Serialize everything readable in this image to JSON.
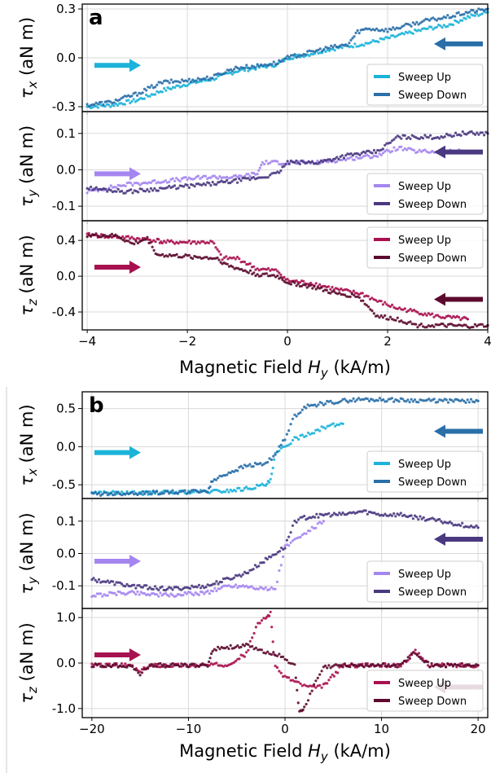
{
  "figure": {
    "panels": [
      {
        "letter": "a",
        "xlabel": "Magnetic Field H_y (kA/m)"
      },
      {
        "letter": "b",
        "xlabel": "Magnetic Field H_y (kA/m)"
      }
    ]
  },
  "chart_data": [
    {
      "type": "scatter",
      "panel": "a",
      "subplot": "tau_x",
      "ylabel": "τx (aN m)",
      "xlim": [
        -4.1,
        4.0
      ],
      "ylim": [
        -0.33,
        0.33
      ],
      "xticks": [
        -4,
        -2,
        0,
        2,
        4
      ],
      "xticklabels": [
        "−4",
        "−2",
        "0",
        "2",
        "4"
      ],
      "yticks": [
        -0.3,
        0.0,
        0.3
      ],
      "yticklabels": [
        "-0.3",
        "0.0",
        "0.3"
      ],
      "grid": true,
      "legend_position": "lower-right",
      "arrows": [
        {
          "direction": "right",
          "color": "#1bb3d9",
          "pos": "left"
        },
        {
          "direction": "left",
          "color": "#2a6fa8",
          "pos": "right"
        }
      ],
      "series": [
        {
          "name": "Sweep Up",
          "color": "#1bb3d9",
          "x": [
            -4.0,
            -3.5,
            -3.0,
            -2.5,
            -2.0,
            -1.5,
            -1.2,
            -1.0,
            -0.6,
            -0.2,
            0.0,
            0.4,
            0.8,
            1.2,
            1.6,
            2.0,
            2.4,
            2.8,
            3.2,
            3.6,
            4.0
          ],
          "y": [
            -0.3,
            -0.29,
            -0.26,
            -0.2,
            -0.16,
            -0.13,
            -0.1,
            -0.08,
            -0.06,
            -0.04,
            0.0,
            0.02,
            0.05,
            0.07,
            0.09,
            0.12,
            0.15,
            0.18,
            0.2,
            0.25,
            0.28
          ]
        },
        {
          "name": "Sweep Down",
          "color": "#2a6fa8",
          "x": [
            -4.0,
            -3.5,
            -3.0,
            -2.5,
            -2.0,
            -1.5,
            -1.2,
            -1.0,
            -0.6,
            -0.2,
            0.0,
            0.4,
            0.8,
            1.2,
            1.4,
            1.6,
            2.0,
            2.4,
            2.8,
            3.2,
            3.6,
            4.0
          ],
          "y": [
            -0.29,
            -0.27,
            -0.22,
            -0.15,
            -0.14,
            -0.12,
            -0.08,
            -0.06,
            -0.05,
            -0.03,
            0.0,
            0.03,
            0.06,
            0.08,
            0.16,
            0.18,
            0.17,
            0.2,
            0.23,
            0.25,
            0.28,
            0.3
          ]
        }
      ]
    },
    {
      "type": "scatter",
      "panel": "a",
      "subplot": "tau_y",
      "ylabel": "τy (aN m)",
      "xlim": [
        -4.1,
        4.0
      ],
      "ylim": [
        -0.14,
        0.16
      ],
      "xticks": [
        -4,
        -2,
        0,
        2,
        4
      ],
      "xticklabels": [
        "−4",
        "−2",
        "0",
        "2",
        "4"
      ],
      "yticks": [
        -0.1,
        0.0,
        0.1
      ],
      "yticklabels": [
        "-0.1",
        "0.0",
        "0.1"
      ],
      "grid": true,
      "legend_position": "lower-right",
      "arrows": [
        {
          "direction": "right",
          "color": "#a586f0",
          "pos": "left"
        },
        {
          "direction": "left",
          "color": "#4a3880",
          "pos": "right"
        }
      ],
      "series": [
        {
          "name": "Sweep Up",
          "color": "#a586f0",
          "x": [
            -4.0,
            -3.2,
            -2.4,
            -1.6,
            -1.0,
            -0.6,
            -0.5,
            -0.2,
            0.0,
            0.6,
            1.2,
            1.8,
            2.2,
            2.6,
            3.0,
            3.5
          ],
          "y": [
            -0.06,
            -0.04,
            -0.03,
            -0.02,
            -0.02,
            -0.01,
            0.02,
            0.02,
            0.02,
            0.02,
            0.03,
            0.04,
            0.06,
            0.05,
            0.05,
            0.05
          ]
        },
        {
          "name": "Sweep Down",
          "color": "#4a3880",
          "x": [
            -4.0,
            -3.2,
            -2.4,
            -1.6,
            -1.0,
            -0.5,
            -0.2,
            0.0,
            0.6,
            1.2,
            1.8,
            2.2,
            2.6,
            3.0,
            3.5,
            4.0
          ],
          "y": [
            -0.05,
            -0.06,
            -0.05,
            -0.04,
            -0.03,
            -0.02,
            -0.01,
            0.02,
            0.02,
            0.04,
            0.05,
            0.09,
            0.09,
            0.09,
            0.1,
            0.1
          ]
        }
      ]
    },
    {
      "type": "scatter",
      "panel": "a",
      "subplot": "tau_z",
      "ylabel": "τz (aN m)",
      "xlim": [
        -4.1,
        4.0
      ],
      "ylim": [
        -0.6,
        0.62
      ],
      "xticks": [
        -4,
        -2,
        0,
        2,
        4
      ],
      "xticklabels": [
        "−4",
        "−2",
        "0",
        "2",
        "4"
      ],
      "yticks": [
        -0.4,
        0.0,
        0.4
      ],
      "yticklabels": [
        "-0.4",
        "0.0",
        "0.4"
      ],
      "grid": true,
      "legend_position": "upper-right",
      "arrows": [
        {
          "direction": "right",
          "color": "#a8114f",
          "pos": "left"
        },
        {
          "direction": "left",
          "color": "#5c0a2e",
          "pos": "right"
        }
      ],
      "series": [
        {
          "name": "Sweep Up",
          "color": "#a8114f",
          "x": [
            -4.0,
            -3.4,
            -3.0,
            -2.6,
            -2.5,
            -2.0,
            -1.5,
            -1.3,
            -1.0,
            -0.6,
            -0.2,
            0.0,
            0.5,
            1.0,
            1.5,
            1.8,
            2.2,
            2.6,
            3.0,
            3.6
          ],
          "y": [
            0.46,
            0.44,
            0.42,
            0.4,
            0.38,
            0.38,
            0.38,
            0.2,
            0.2,
            0.08,
            0.06,
            -0.05,
            -0.08,
            -0.15,
            -0.2,
            -0.28,
            -0.36,
            -0.4,
            -0.45,
            -0.48
          ]
        },
        {
          "name": "Sweep Down",
          "color": "#5c0a2e",
          "x": [
            -4.0,
            -3.4,
            -3.1,
            -2.8,
            -2.6,
            -2.0,
            -1.4,
            -1.2,
            -0.6,
            -0.2,
            0.0,
            0.5,
            1.0,
            1.4,
            1.8,
            2.2,
            2.6,
            3.0,
            3.6,
            4.0
          ],
          "y": [
            0.46,
            0.45,
            0.36,
            0.42,
            0.24,
            0.22,
            0.2,
            0.12,
            0.02,
            0.0,
            -0.07,
            -0.12,
            -0.2,
            -0.22,
            -0.45,
            -0.48,
            -0.55,
            -0.55,
            -0.56,
            -0.55
          ]
        }
      ]
    },
    {
      "type": "scatter",
      "panel": "b",
      "subplot": "tau_x",
      "ylabel": "τx (aN m)",
      "xlim": [
        -21,
        21
      ],
      "ylim": [
        -0.68,
        0.72
      ],
      "xticks": [
        -20,
        -10,
        0,
        10,
        20
      ],
      "xticklabels": [
        "−20",
        "−10",
        "0",
        "10",
        "20"
      ],
      "yticks": [
        -0.5,
        0.0,
        0.5
      ],
      "yticklabels": [
        "-0.5",
        "0.0",
        "0.5"
      ],
      "grid": true,
      "legend_position": "lower-right",
      "arrows": [
        {
          "direction": "right",
          "color": "#1bb3d9",
          "pos": "left"
        },
        {
          "direction": "left",
          "color": "#2a6fa8",
          "pos": "right"
        }
      ],
      "series": [
        {
          "name": "Sweep Up",
          "color": "#1bb3d9",
          "x": [
            -20,
            -16,
            -12,
            -8,
            -6,
            -4,
            -2,
            -1.5,
            -1,
            0,
            1,
            2,
            3,
            4,
            5,
            6
          ],
          "y": [
            -0.6,
            -0.61,
            -0.6,
            -0.59,
            -0.58,
            -0.55,
            -0.5,
            -0.45,
            -0.1,
            0.0,
            0.1,
            0.15,
            0.2,
            0.25,
            0.28,
            0.3
          ]
        },
        {
          "name": "Sweep Down",
          "color": "#2a6fa8",
          "x": [
            -20,
            -16,
            -12,
            -8,
            -7.5,
            -6,
            -4,
            -2,
            -1,
            0,
            1,
            2,
            4,
            6,
            8,
            12,
            16,
            20
          ],
          "y": [
            -0.62,
            -0.61,
            -0.6,
            -0.58,
            -0.45,
            -0.35,
            -0.25,
            -0.22,
            -0.1,
            0.1,
            0.4,
            0.52,
            0.57,
            0.6,
            0.62,
            0.61,
            0.6,
            0.6
          ]
        }
      ]
    },
    {
      "type": "scatter",
      "panel": "b",
      "subplot": "tau_y",
      "ylabel": "τy (aN m)",
      "xlim": [
        -21,
        21
      ],
      "ylim": [
        -0.17,
        0.17
      ],
      "xticks": [
        -20,
        -10,
        0,
        10,
        20
      ],
      "xticklabels": [
        "−20",
        "−10",
        "0",
        "10",
        "20"
      ],
      "yticks": [
        -0.1,
        0.0,
        0.1
      ],
      "yticklabels": [
        "-0.1",
        "0.0",
        "0.1"
      ],
      "grid": true,
      "legend_position": "lower-right",
      "arrows": [
        {
          "direction": "right",
          "color": "#a586f0",
          "pos": "left"
        },
        {
          "direction": "left",
          "color": "#4a3880",
          "pos": "right"
        }
      ],
      "series": [
        {
          "name": "Sweep Up",
          "color": "#a586f0",
          "x": [
            -20,
            -16,
            -12,
            -8,
            -6,
            -4,
            -2,
            -1,
            0,
            1,
            2,
            3,
            4
          ],
          "y": [
            -0.13,
            -0.12,
            -0.13,
            -0.12,
            -0.1,
            -0.1,
            -0.11,
            -0.11,
            0.02,
            0.04,
            0.06,
            0.08,
            0.1
          ]
        },
        {
          "name": "Sweep Down",
          "color": "#4a3880",
          "x": [
            -20,
            -16,
            -12,
            -8,
            -6,
            -4,
            -2,
            0,
            1,
            2,
            4,
            6,
            8,
            10,
            12,
            14,
            16,
            18,
            20
          ],
          "y": [
            -0.08,
            -0.1,
            -0.11,
            -0.1,
            -0.08,
            -0.06,
            -0.02,
            0.02,
            0.1,
            0.11,
            0.12,
            0.12,
            0.13,
            0.12,
            0.12,
            0.11,
            0.1,
            0.09,
            0.08
          ]
        }
      ]
    },
    {
      "type": "scatter",
      "panel": "b",
      "subplot": "tau_z",
      "ylabel": "τz (aN m)",
      "xlim": [
        -21,
        21
      ],
      "ylim": [
        -1.2,
        1.2
      ],
      "xticks": [
        -20,
        -10,
        0,
        10,
        20
      ],
      "xticklabels": [
        "−20",
        "−10",
        "0",
        "10",
        "20"
      ],
      "yticks": [
        -1.0,
        0.0,
        1.0
      ],
      "yticklabels": [
        "-1.0",
        "0.0",
        "1.0"
      ],
      "grid": true,
      "legend_position": "lower-right",
      "arrows": [
        {
          "direction": "right",
          "color": "#a8114f",
          "pos": "left"
        },
        {
          "direction": "left",
          "color": "#5c0a2e",
          "pos": "right"
        }
      ],
      "series": [
        {
          "name": "Sweep Up",
          "color": "#a8114f",
          "x": [
            -20,
            -16,
            -15,
            -14,
            -12,
            -8,
            -6,
            -4,
            -3,
            -2,
            -1.5,
            -1,
            0,
            1,
            2,
            3,
            4,
            6,
            8,
            12,
            13.5,
            15,
            20
          ],
          "y": [
            -0.05,
            -0.05,
            -0.2,
            -0.05,
            -0.05,
            -0.05,
            -0.03,
            0.2,
            0.8,
            1.0,
            1.1,
            -0.1,
            -0.3,
            -0.4,
            -0.5,
            -0.55,
            -0.5,
            -0.05,
            -0.05,
            -0.05,
            0.25,
            -0.05,
            -0.05
          ]
        },
        {
          "name": "Sweep Down",
          "color": "#5c0a2e",
          "x": [
            -20,
            -16,
            -15,
            -14,
            -12,
            -8,
            -7.5,
            -6,
            -4,
            -3,
            -2,
            -1,
            0,
            1,
            1.5,
            2,
            3,
            4,
            6,
            8,
            12,
            13.5,
            15,
            20
          ],
          "y": [
            -0.05,
            -0.05,
            -0.25,
            -0.05,
            -0.05,
            -0.05,
            0.3,
            0.35,
            0.38,
            0.3,
            0.25,
            0.2,
            0.1,
            -0.05,
            -1.1,
            -1.0,
            -0.5,
            -0.1,
            -0.05,
            -0.05,
            -0.05,
            0.25,
            -0.05,
            -0.05
          ]
        }
      ]
    }
  ]
}
